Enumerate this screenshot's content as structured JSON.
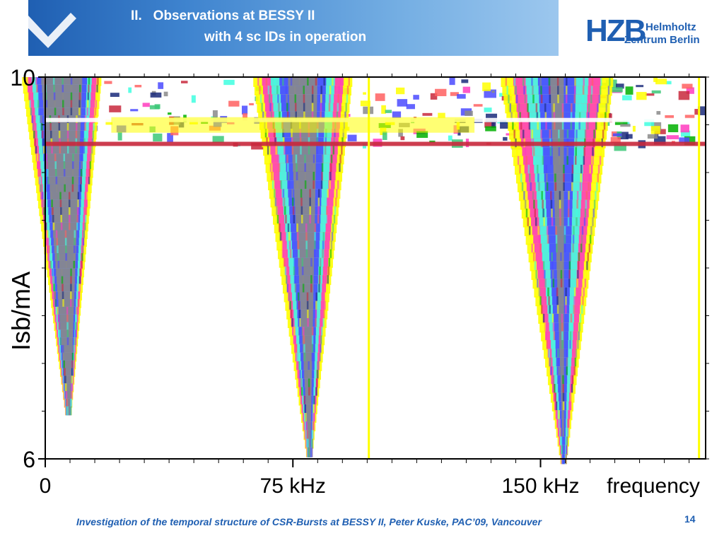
{
  "header": {
    "title_line1": "II.   Observations at BESSY II",
    "title_line2": "with 4 sc IDs in operation"
  },
  "logo": {
    "mark": "HZB",
    "line1": "Helmholtz",
    "line2": "Zentrum Berlin",
    "color": "#1f5fb2"
  },
  "chart_data": {
    "type": "heatmap",
    "xlabel": "frequency",
    "ylabel": "Isb/mA",
    "x_tick_labels": [
      "0",
      "75 kHz",
      "150 kHz"
    ],
    "x_ticks": [
      0,
      75,
      150
    ],
    "xlim": [
      0,
      200
    ],
    "y_tick_labels": [
      "10",
      "6"
    ],
    "y_ticks": [
      10,
      6
    ],
    "ylim": [
      6,
      10
    ],
    "color_scale": [
      "#ffff00",
      "#ff3cbe",
      "#ff6060",
      "#40ffe0",
      "#3cc878",
      "#4a4aff",
      "#8a8a8a",
      "#00b000",
      "#c8283c",
      "#1a2a7a"
    ],
    "bands": [
      {
        "center": 5,
        "i_top": 10,
        "i_bottom": 6.55,
        "width_top": 24,
        "width_bottom": 2,
        "intensity": 0.55
      },
      {
        "center": 78,
        "i_top": 10,
        "i_bottom": 6.12,
        "width_top": 30,
        "width_bottom": 2,
        "intensity": 0.8
      },
      {
        "center": 155,
        "i_top": 10,
        "i_bottom": 6.05,
        "width_top": 34,
        "width_bottom": 2,
        "intensity": 1.0
      }
    ],
    "vertical_lines": [
      98,
      198
    ],
    "horizontal_streaks": [
      9.55,
      9.3
    ]
  },
  "footer": {
    "text": "Investigation of the temporal structure of CSR-Bursts at BESSY II, Peter Kuske, PAC’09, Vancouver",
    "page_number": "14"
  }
}
